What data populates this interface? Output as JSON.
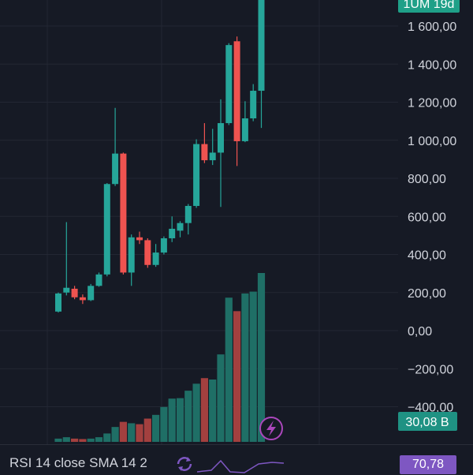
{
  "chart_data": {
    "type": "candlestick",
    "price_axis": {
      "ticks": [
        1600,
        1400,
        1200,
        1000,
        800,
        600,
        400,
        200,
        0,
        -200,
        -400
      ],
      "tick_labels": [
        "1 600,00",
        "1 400,00",
        "1 200,00",
        "1 000,00",
        "800,00",
        "600,00",
        "400,00",
        "200,00",
        "0,00",
        "−200,00",
        "−400,00"
      ],
      "range": [
        -430,
        1770
      ]
    },
    "candles": [
      {
        "o": 100,
        "h": 200,
        "l": 95,
        "c": 195
      },
      {
        "o": 200,
        "h": 570,
        "l": 185,
        "c": 225
      },
      {
        "o": 220,
        "h": 235,
        "l": 165,
        "c": 175
      },
      {
        "o": 175,
        "h": 190,
        "l": 140,
        "c": 160
      },
      {
        "o": 160,
        "h": 245,
        "l": 155,
        "c": 235
      },
      {
        "o": 235,
        "h": 305,
        "l": 230,
        "c": 295
      },
      {
        "o": 295,
        "h": 775,
        "l": 285,
        "c": 770
      },
      {
        "o": 770,
        "h": 1170,
        "l": 760,
        "c": 930
      },
      {
        "o": 930,
        "h": 935,
        "l": 295,
        "c": 305
      },
      {
        "o": 305,
        "h": 505,
        "l": 235,
        "c": 490
      },
      {
        "o": 490,
        "h": 520,
        "l": 455,
        "c": 475
      },
      {
        "o": 475,
        "h": 485,
        "l": 330,
        "c": 345
      },
      {
        "o": 345,
        "h": 455,
        "l": 335,
        "c": 410
      },
      {
        "o": 410,
        "h": 495,
        "l": 400,
        "c": 485
      },
      {
        "o": 485,
        "h": 600,
        "l": 465,
        "c": 535
      },
      {
        "o": 525,
        "h": 575,
        "l": 490,
        "c": 565
      },
      {
        "o": 565,
        "h": 665,
        "l": 505,
        "c": 655
      },
      {
        "o": 655,
        "h": 1005,
        "l": 645,
        "c": 980
      },
      {
        "o": 980,
        "h": 1090,
        "l": 880,
        "c": 895
      },
      {
        "o": 895,
        "h": 1060,
        "l": 870,
        "c": 935
      },
      {
        "o": 935,
        "h": 1215,
        "l": 650,
        "c": 1090
      },
      {
        "o": 1090,
        "h": 1510,
        "l": 1080,
        "c": 1500
      },
      {
        "o": 1520,
        "h": 1545,
        "l": 865,
        "c": 995
      },
      {
        "o": 995,
        "h": 1205,
        "l": 990,
        "c": 1115
      },
      {
        "o": 1115,
        "h": 1295,
        "l": 1100,
        "c": 1260
      },
      {
        "o": 1260,
        "h": 1770,
        "l": 1065,
        "c": 1770
      }
    ],
    "volume": {
      "values": [
        0.7,
        1.0,
        0.7,
        0.6,
        0.7,
        1.0,
        1.8,
        3.2,
        4.3,
        4.0,
        3.8,
        5.0,
        5.8,
        7.5,
        9.3,
        9.4,
        11.0,
        12.5,
        13.7,
        13.4,
        18.8,
        31.0,
        28.1,
        31.9,
        32.3,
        36.3
      ],
      "up_color": "#1f6f66",
      "down_color": "#a3403f"
    },
    "current_price_badge": "1UM 19d",
    "volume_badge": "30,08 B",
    "up_color": "#26a69a",
    "down_color": "#ef5350",
    "grid": true
  },
  "indicator": {
    "label": "RSI 14 close SMA 14 2",
    "value": "70,78",
    "color": "#7e57c2"
  },
  "icons": {
    "lightning": "lightning-icon",
    "refresh": "refresh-icon"
  }
}
